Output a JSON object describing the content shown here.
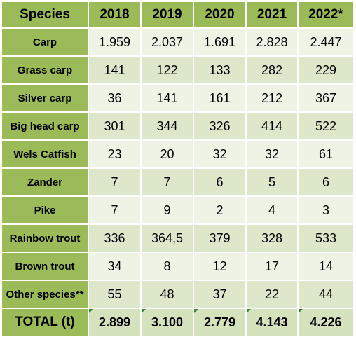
{
  "colors": {
    "header_bg": "#9bbb59",
    "odd_row_bg": "#eef3e6",
    "even_row_bg": "#dde8cb",
    "total_row_bg": "#d4e2be"
  },
  "table": {
    "columns": [
      "Species",
      "2018",
      "2019",
      "2020",
      "2021",
      "2022*"
    ],
    "rows": [
      {
        "species": "Carp",
        "values": [
          "1.959",
          "2.037",
          "1.691",
          "2.828",
          "2.447"
        ]
      },
      {
        "species": "Grass carp",
        "values": [
          "141",
          "122",
          "133",
          "282",
          "229"
        ]
      },
      {
        "species": "Silver carp",
        "values": [
          "36",
          "141",
          "161",
          "212",
          "367"
        ]
      },
      {
        "species": "Big head carp",
        "values": [
          "301",
          "344",
          "326",
          "414",
          "522"
        ]
      },
      {
        "species": "Wels Catfish",
        "values": [
          "23",
          "20",
          "32",
          "32",
          "61"
        ]
      },
      {
        "species": "Zander",
        "values": [
          "7",
          "7",
          "6",
          "5",
          "6"
        ]
      },
      {
        "species": "Pike",
        "values": [
          "7",
          "9",
          "2",
          "4",
          "3"
        ]
      },
      {
        "species": "Rainbow trout",
        "values": [
          "336",
          "364,5",
          "379",
          "328",
          "533"
        ]
      },
      {
        "species": "Brown trout",
        "values": [
          "34",
          "8",
          "12",
          "17",
          "14"
        ]
      },
      {
        "species": "Other species**",
        "values": [
          "55",
          "48",
          "37",
          "22",
          "44"
        ]
      }
    ],
    "total": {
      "label": "TOTAL (t)",
      "values": [
        "2.899",
        "3.100",
        "2.779",
        "4.143",
        "4.226"
      ]
    }
  }
}
